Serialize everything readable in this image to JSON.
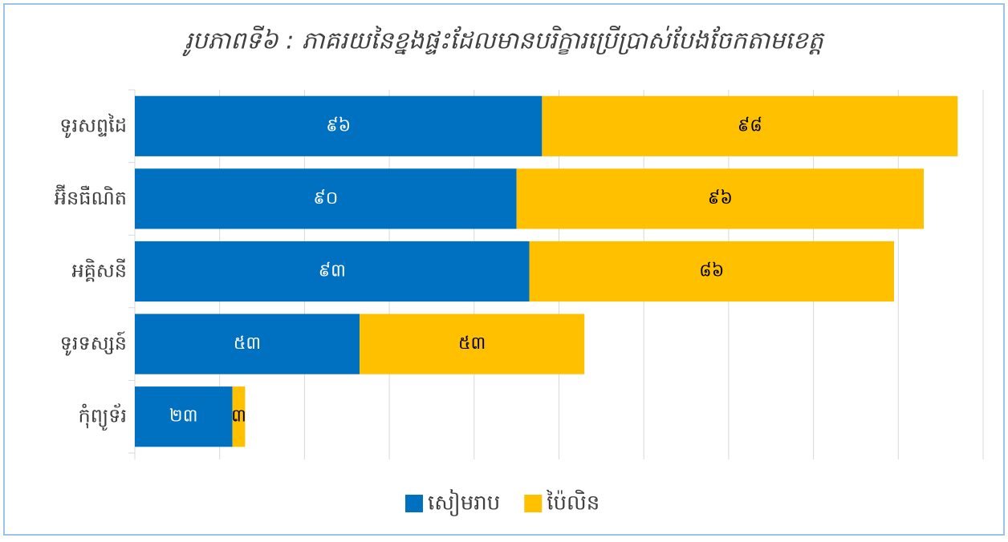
{
  "chart_data": {
    "type": "stacked_bar_horizontal",
    "title": "រូបភាពទី៦ : ភាគរយនៃខ្នងផ្ទះដែលមានបរិក្ខារប្រើប្រាស់បែងចែកតាមខេត្ត",
    "categories": [
      "ទូរសព្ទដៃ",
      "អ៊ីនធឺណិត",
      "អគ្គិសនី",
      "ទូរទស្សន៍",
      "កុំព្យូទ័រ"
    ],
    "series": [
      {
        "name": "សៀមរាប",
        "color": "#0070C0",
        "values": [
          96,
          90,
          93,
          53,
          23
        ],
        "value_labels": [
          "៩៦",
          "៩០",
          "៩៣",
          "៥៣",
          "២៣"
        ]
      },
      {
        "name": "ប៉ៃលិន",
        "color": "#FFC000",
        "values": [
          98,
          96,
          86,
          53,
          3
        ],
        "value_labels": [
          "៩៨",
          "៩៦",
          "៨៦",
          "៥៣",
          "៣"
        ]
      }
    ],
    "xlim": [
      0,
      200
    ],
    "xticks": [
      0,
      20,
      40,
      60,
      80,
      100,
      120,
      140,
      160,
      180,
      200
    ],
    "grid": true,
    "legend": "bottom"
  }
}
